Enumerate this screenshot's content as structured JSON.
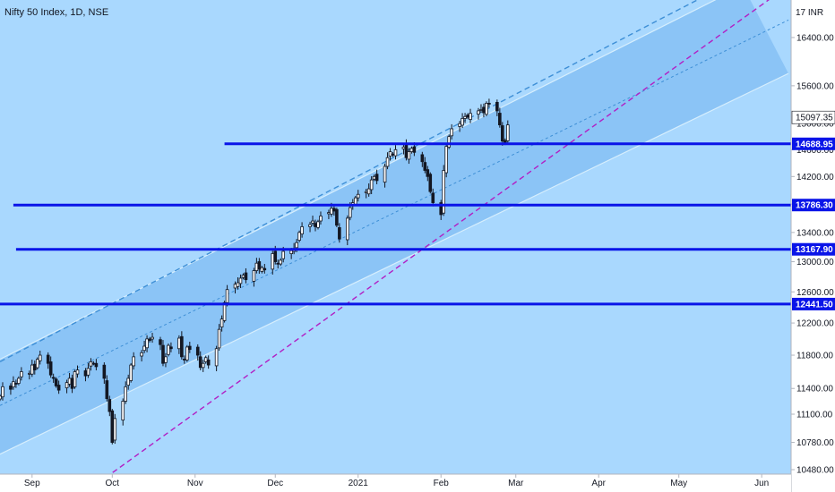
{
  "chart_data": {
    "type": "candlestick",
    "title": "Nifty 50 Index, 1D, NSE",
    "currency": "INR",
    "y_scale": "log",
    "ylim": [
      10240,
      17050
    ],
    "xlim": [
      "2020-08-20",
      "2021-06-12"
    ],
    "y_ticks": [
      10480,
      10780,
      11100,
      11400,
      11800,
      12200,
      12600,
      13000,
      13400,
      13800,
      14200,
      14600,
      15000,
      15600,
      16400
    ],
    "y_tick_labels": [
      "10480.00",
      "10780.00",
      "11100.00",
      "11400.00",
      "11800.00",
      "12200.00",
      "12600.00",
      "13000.00",
      "13400.00",
      "13800.00",
      "14200.00",
      "14600.00",
      "15000.00",
      "15600.00",
      "16400.00"
    ],
    "y_top_label": "17 INR",
    "x_ticks": [
      {
        "date": "2020-09-01",
        "label": "Sep"
      },
      {
        "date": "2020-10-01",
        "label": "Oct"
      },
      {
        "date": "2020-11-01",
        "label": "Nov"
      },
      {
        "date": "2020-12-01",
        "label": "Dec"
      },
      {
        "date": "2021-01-01",
        "label": "2021"
      },
      {
        "date": "2021-02-01",
        "label": "Feb"
      },
      {
        "date": "2021-03-01",
        "label": "Mar"
      },
      {
        "date": "2021-04-01",
        "label": "Apr"
      },
      {
        "date": "2021-05-01",
        "label": "May"
      },
      {
        "date": "2021-06-01",
        "label": "Jun"
      }
    ],
    "candle_closes": [
      11310,
      11420,
      11390,
      11480,
      11460,
      11520,
      11600,
      11580,
      11680,
      11620,
      11750,
      11800,
      11700,
      11560,
      11520,
      11430,
      11380,
      11470,
      11520,
      11400,
      11600,
      11620,
      11550,
      11640,
      11720,
      11700,
      11660,
      11520,
      11280,
      11130,
      10780,
      11050,
      11250,
      11420,
      11520,
      11680,
      11780,
      11830,
      11910,
      12000,
      11980,
      12020,
      11930,
      11700,
      11780,
      11920,
      11880,
      12010,
      11780,
      11750,
      11900,
      11870,
      11800,
      11650,
      11700,
      11770,
      11680,
      11880,
      12120,
      12250,
      12460,
      12630,
      12700,
      12720,
      12780,
      12820,
      12760,
      12880,
      12980,
      12900,
      12920,
      12890,
      13110,
      13000,
      12970,
      13020,
      13140,
      13150,
      13180,
      13260,
      13400,
      13480,
      13510,
      13560,
      13480,
      13550,
      13630,
      13680,
      13740,
      13700,
      13500,
      13310,
      13600,
      13750,
      13820,
      13890,
      13940,
      13980,
      14020,
      14150,
      14200,
      14140,
      14350,
      14480,
      14570,
      14520,
      14600,
      14640,
      14480,
      14570,
      14620,
      14560,
      14420,
      14290,
      14200,
      13980,
      13820,
      13650,
      14290,
      14650,
      14800,
      14920,
      15000,
      15080,
      15110,
      15100,
      15160,
      15200,
      15220,
      15170,
      15320,
      15310,
      15200,
      14980,
      14730,
      14700,
      14980
    ],
    "current_price": {
      "value": 15097.35,
      "label": "15097.35"
    },
    "horizontal_levels": [
      {
        "value": 14688.95,
        "label": "14688.95",
        "from": "2020-11-12"
      },
      {
        "value": 13786.3,
        "label": "13786.30",
        "from": "2020-08-25"
      },
      {
        "value": 13167.9,
        "label": "13167.90",
        "from": "2020-08-26"
      },
      {
        "value": 12441.5,
        "label": "12441.50",
        "from": "2020-08-20"
      }
    ],
    "trend_channel": {
      "upper": [
        {
          "date": "2020-08-20",
          "value": 11750
        },
        {
          "date": "2021-05-25",
          "value": 17300
        }
      ],
      "lower": [
        {
          "date": "2020-08-20",
          "value": 10650
        },
        {
          "date": "2021-06-11",
          "value": 15800
        }
      ],
      "dashed_upper": [
        {
          "date": "2020-08-20",
          "value": 11720
        },
        {
          "date": "2021-05-18",
          "value": 17300
        }
      ],
      "dashed_mid": [
        {
          "date": "2020-08-20",
          "value": 11200
        },
        {
          "date": "2021-06-11",
          "value": 16700
        }
      ],
      "dashed_magenta": [
        {
          "date": "2020-09-23",
          "value": 10280
        },
        {
          "date": "2021-06-05",
          "value": 17100
        }
      ]
    },
    "colors": {
      "background": "#a9d8fe",
      "channel_fill": "#8bc4f6",
      "level_line": "#0a14e8",
      "level_label_bg": "#0a14e8",
      "dashed_blue": "#3e8fd6",
      "dashed_magenta": "#b21fc4",
      "channel_edge": "#d6eefd",
      "candle_up": "#ffffff",
      "candle_down": "#131722"
    }
  }
}
